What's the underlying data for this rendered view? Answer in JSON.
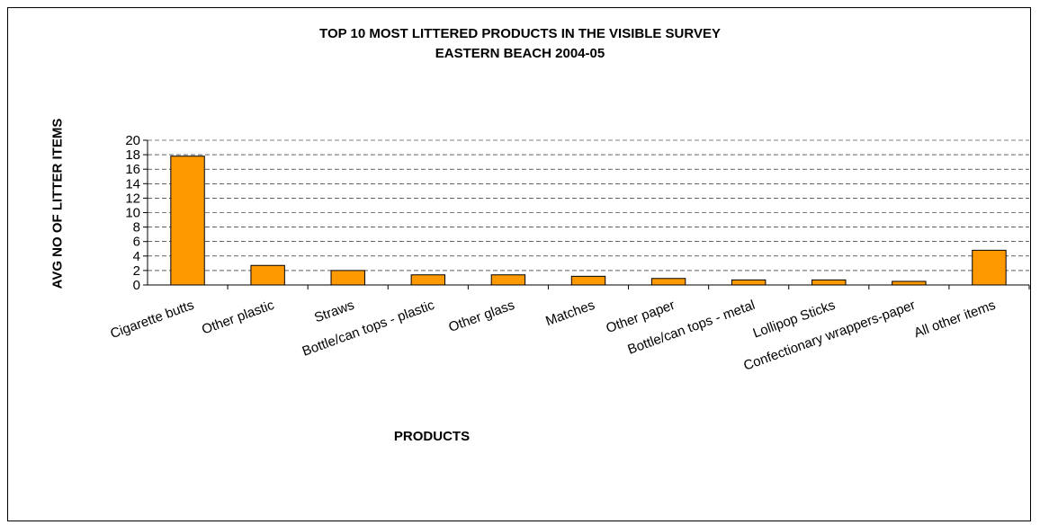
{
  "chart_data": {
    "type": "bar",
    "title": [
      "TOP 10 MOST LITTERED PRODUCTS IN THE VISIBLE SURVEY",
      "EASTERN BEACH 2004-05"
    ],
    "xlabel": "PRODUCTS",
    "ylabel": "AVG NO OF LITTER ITEMS",
    "categories": [
      "Cigarette butts",
      "Other plastic",
      "Straws",
      "Bottle/can tops - plastic",
      "Other glass",
      "Matches",
      "Other paper",
      "Bottle/can tops - metal",
      "Lollipop Sticks",
      "Confectionary wrappers-paper",
      "All other items"
    ],
    "values": [
      17.8,
      2.7,
      2.0,
      1.4,
      1.4,
      1.2,
      0.9,
      0.7,
      0.7,
      0.5,
      4.8
    ],
    "ylim": [
      0,
      20
    ],
    "yticks": [
      "0",
      "2",
      "4",
      "6",
      "8",
      "10",
      "12",
      "14",
      "16",
      "18",
      "20"
    ],
    "grid": true,
    "legend": "none",
    "bar_color": "#FF9900",
    "bar_edge": "#000000"
  }
}
